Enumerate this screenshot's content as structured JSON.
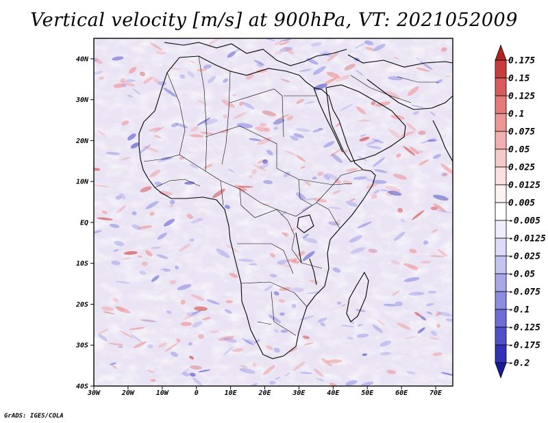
{
  "title": "Vertical velocity [m/s] at 900hPa, VT: 2021052009",
  "credit": "GrADS: IGES/COLA",
  "chart_data": {
    "type": "heatmap",
    "variable": "Vertical velocity",
    "units": "m/s",
    "level": "900hPa",
    "valid_time": "2021052009",
    "x_axis": {
      "range": [
        -30,
        75
      ],
      "tick_labels": [
        "30W",
        "20W",
        "10W",
        "0",
        "10E",
        "20E",
        "30E",
        "40E",
        "50E",
        "60E",
        "70E"
      ],
      "tick_values": [
        -30,
        -20,
        -10,
        0,
        10,
        20,
        30,
        40,
        50,
        60,
        70
      ]
    },
    "y_axis": {
      "range": [
        -40,
        45
      ],
      "tick_labels": [
        "40S",
        "30S",
        "20S",
        "10S",
        "EQ",
        "10N",
        "20N",
        "30N",
        "40N"
      ],
      "tick_values": [
        -40,
        -30,
        -20,
        -10,
        0,
        10,
        20,
        30,
        40
      ]
    },
    "colorbar": {
      "labels": [
        "0.175",
        "0.15",
        "0.125",
        "0.1",
        "0.075",
        "0.05",
        "0.025",
        "0.0125",
        "0.005",
        "-0.005",
        "-0.0125",
        "-0.025",
        "-0.05",
        "-0.075",
        "-0.1",
        "-0.125",
        "-0.175",
        "-0.2"
      ],
      "colors": [
        "#b22222",
        "#c83c3c",
        "#d85c5c",
        "#e47a7a",
        "#ec9696",
        "#f2b0b0",
        "#f7caca",
        "#fbe0e0",
        "#fdf2f2",
        "#ffffff",
        "#eeeefc",
        "#dcdcf7",
        "#c4c4f0",
        "#a8a8e8",
        "#8c8ce0",
        "#6e6ed6",
        "#5050c8",
        "#3232b4",
        "#1a1a9c"
      ]
    }
  }
}
